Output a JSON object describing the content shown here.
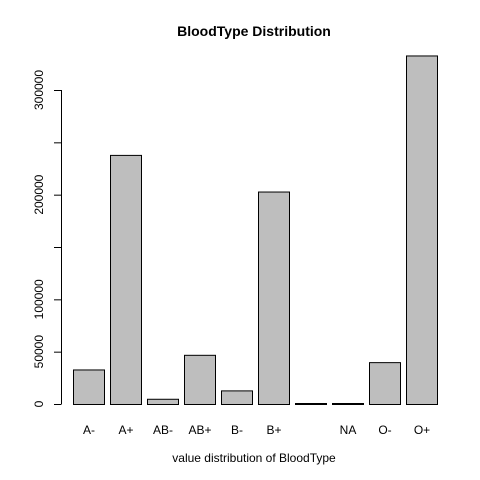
{
  "chart_data": {
    "type": "bar",
    "title": "BloodType Distribution",
    "xlabel": "value distribution of BloodType",
    "ylabel": "",
    "categories": [
      "A-",
      "A+",
      "AB-",
      "AB+",
      "B-",
      "B+",
      "",
      "NA",
      "O-",
      "O+"
    ],
    "values": [
      33000,
      238000,
      5000,
      47000,
      13000,
      203000,
      500,
      500,
      40000,
      333000
    ],
    "ylim": [
      0,
      340000
    ],
    "yticks": [
      0,
      50000,
      100000,
      200000,
      300000
    ],
    "ytick_labels": [
      "0",
      "50000",
      "100000",
      "200000",
      "300000"
    ],
    "grid": false,
    "bar_color": "#bebebe"
  }
}
